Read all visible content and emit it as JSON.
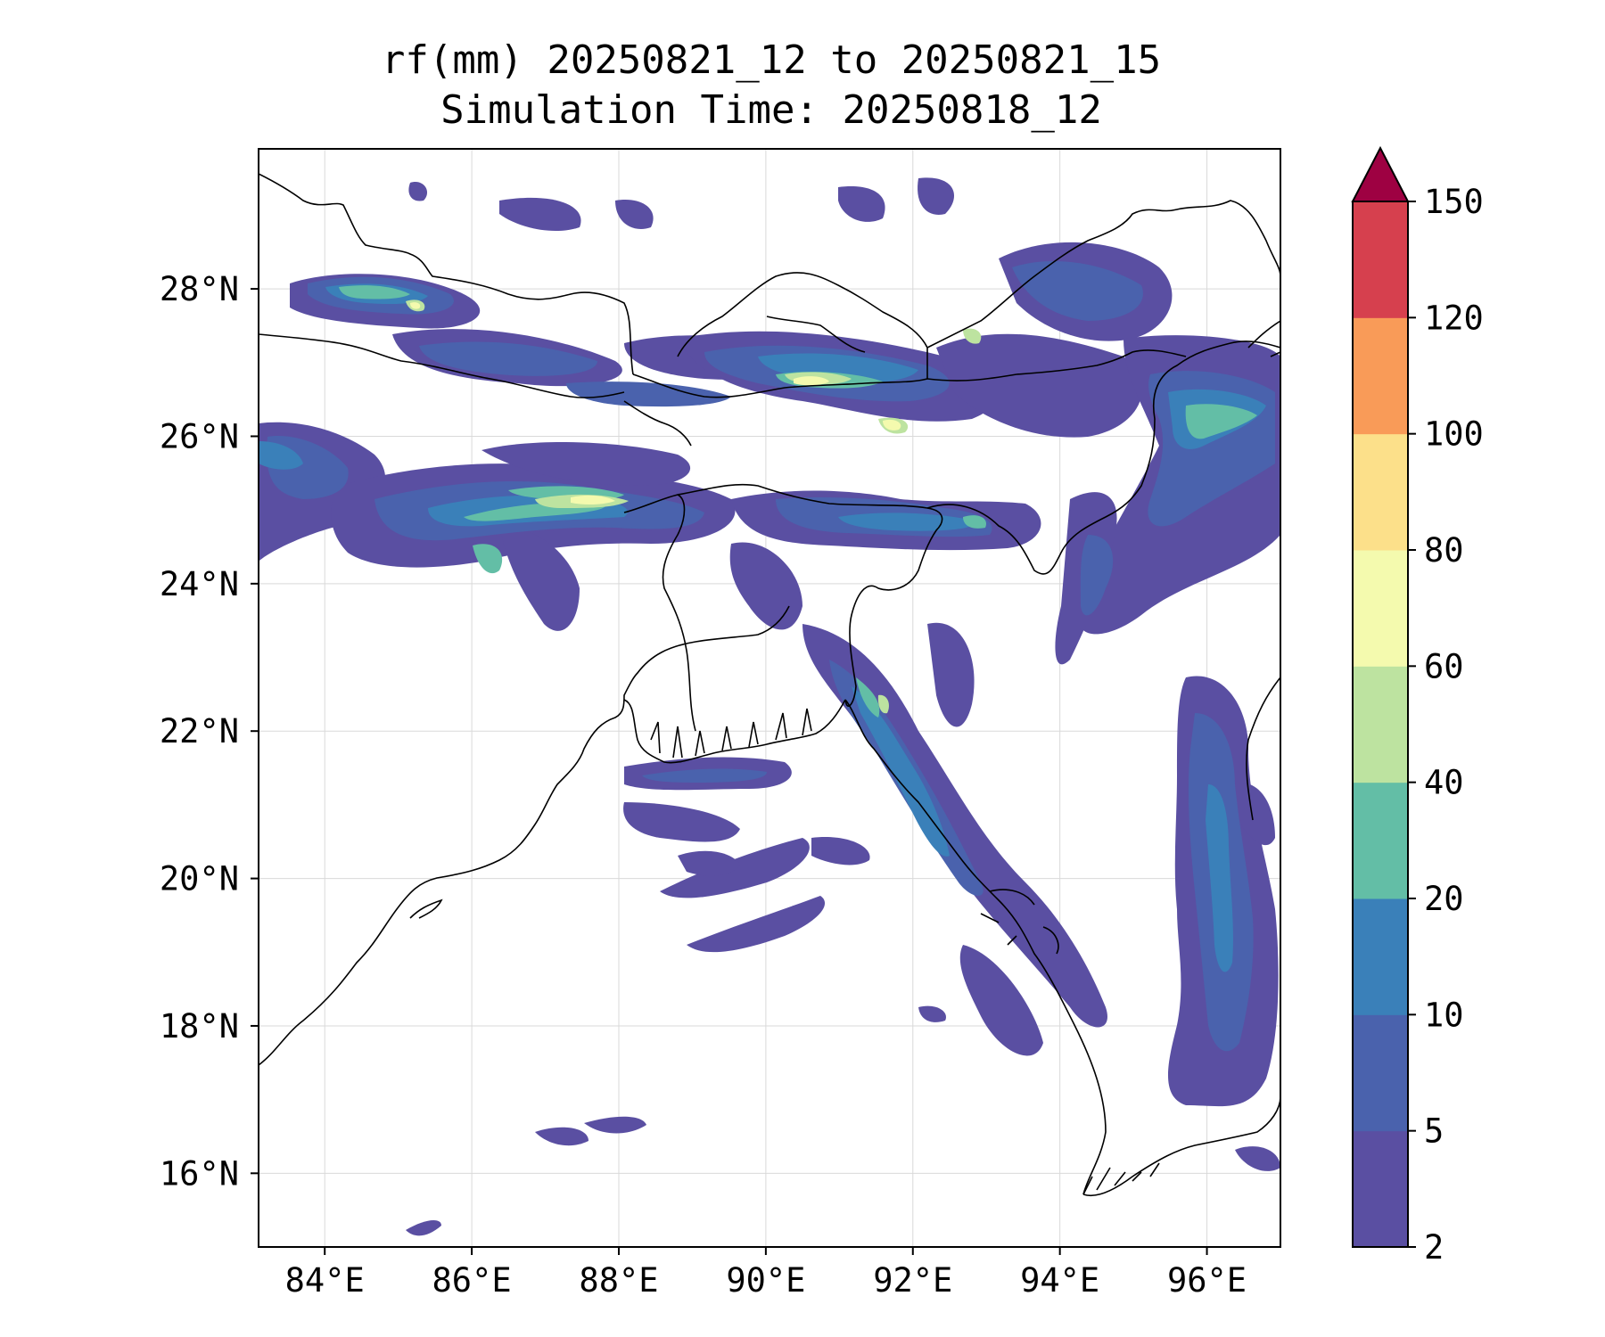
{
  "title": {
    "line1": "rf(mm) 20250821_12 to 20250821_15",
    "line2": "Simulation Time: 20250818_12"
  },
  "map": {
    "extent": {
      "lon": [
        83.1,
        97.0
      ],
      "lat": [
        15.0,
        29.9
      ]
    },
    "x_ticks": [
      {
        "value": 84,
        "label": "84°E"
      },
      {
        "value": 86,
        "label": "86°E"
      },
      {
        "value": 88,
        "label": "88°E"
      },
      {
        "value": 90,
        "label": "90°E"
      },
      {
        "value": 92,
        "label": "92°E"
      },
      {
        "value": 94,
        "label": "94°E"
      },
      {
        "value": 96,
        "label": "96°E"
      }
    ],
    "y_ticks": [
      {
        "value": 16,
        "label": "16°N"
      },
      {
        "value": 18,
        "label": "18°N"
      },
      {
        "value": 20,
        "label": "20°N"
      },
      {
        "value": 22,
        "label": "22°N"
      },
      {
        "value": 24,
        "label": "24°N"
      },
      {
        "value": 26,
        "label": "26°N"
      },
      {
        "value": 28,
        "label": "28°N"
      }
    ],
    "gridlines": true
  },
  "colorbar": {
    "levels": [
      2,
      5,
      10,
      20,
      40,
      60,
      80,
      100,
      120,
      150
    ],
    "labels": [
      "2",
      "5",
      "10",
      "20",
      "40",
      "60",
      "80",
      "100",
      "120",
      "150"
    ],
    "colors": [
      "#5a4fa2",
      "#4a62ad",
      "#3a80b9",
      "#63bea6",
      "#bde3a0",
      "#f4faae",
      "#fce08a",
      "#f99b58",
      "#d6404e"
    ],
    "extend_color": "#9e0142",
    "extend": "max"
  }
}
